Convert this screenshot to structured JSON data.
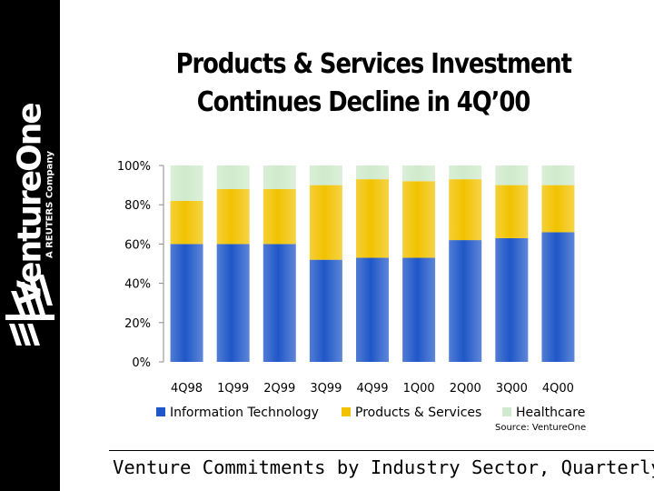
{
  "brand": {
    "name": "VentureOne",
    "tagline": "A REUTERS Company"
  },
  "slide": {
    "title_line1": "Products & Services Investment",
    "title_line2": "Continues Decline in 4Q’00",
    "source": "Source: VentureOne",
    "footer": "Venture Commitments by Industry Sector, Quarterly"
  },
  "colors": {
    "information_technology": "#1f57c8",
    "products_services": "#f2c200",
    "healthcare": "#cfeacc",
    "sidebar": "#000000"
  },
  "chart_data": {
    "type": "bar",
    "stacked": true,
    "title": "Venture Commitments by Industry Sector, Quarterly",
    "categories": [
      "4Q98",
      "1Q99",
      "2Q99",
      "3Q99",
      "4Q99",
      "1Q00",
      "2Q00",
      "3Q00",
      "4Q00"
    ],
    "series": [
      {
        "name": "Information Technology",
        "values": [
          60,
          60,
          60,
          52,
          53,
          53,
          62,
          63,
          66
        ]
      },
      {
        "name": "Products & Services",
        "values": [
          22,
          28,
          28,
          38,
          40,
          39,
          31,
          27,
          24
        ]
      },
      {
        "name": "Healthcare",
        "values": [
          18,
          12,
          12,
          10,
          7,
          8,
          7,
          10,
          10
        ]
      }
    ],
    "y_ticks": [
      "0%",
      "20%",
      "40%",
      "60%",
      "80%",
      "100%"
    ],
    "ylim": [
      0,
      100
    ],
    "xlabel": "",
    "ylabel": "",
    "legend_position": "bottom"
  }
}
